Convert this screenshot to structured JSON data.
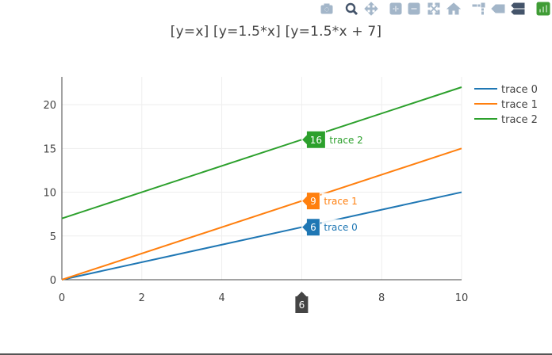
{
  "title": "[y=x]  [y=1.5*x]  [y=1.5*x + 7]",
  "modebar": {
    "icons": [
      "camera-icon",
      "zoom-icon",
      "pan-icon",
      "zoom-in-icon",
      "zoom-out-icon",
      "autoscale-icon",
      "home-icon",
      "spike-lines-icon",
      "hover-closest-icon",
      "hover-compare-icon",
      "plotly-logo-icon"
    ],
    "active": "zoom-icon",
    "color": "#a3b6c9",
    "active_color": "#44546a",
    "logo_color": "#3f9c35"
  },
  "chart_data": {
    "type": "line",
    "title": "[y=x]  [y=1.5*x]  [y=1.5*x + 7]",
    "xlabel": "",
    "ylabel": "",
    "x": [
      0,
      10
    ],
    "xlim": [
      0,
      10
    ],
    "ylim": [
      0,
      22
    ],
    "xticks": [
      "0",
      "2",
      "4",
      "6",
      "8",
      "10"
    ],
    "xtick_values": [
      0,
      2,
      4,
      6,
      8,
      10
    ],
    "yticks": [
      "0",
      "5",
      "10",
      "15",
      "20"
    ],
    "ytick_values": [
      0,
      5,
      10,
      15,
      20
    ],
    "grid": true,
    "legend_position": "top-right",
    "series": [
      {
        "name": "trace 0",
        "values": [
          0,
          10
        ],
        "color": "#1f77b4"
      },
      {
        "name": "trace 1",
        "values": [
          0,
          15
        ],
        "color": "#ff7f0e"
      },
      {
        "name": "trace 2",
        "values": [
          7,
          22
        ],
        "color": "#2ca02c"
      }
    ],
    "hover": {
      "x": 6,
      "x_label": "6",
      "x_label_color": "#444444",
      "labels": [
        {
          "series": "trace 0",
          "value_label": "6",
          "name": "trace 0",
          "y": 6
        },
        {
          "series": "trace 1",
          "value_label": "9",
          "name": "trace 1",
          "y": 9
        },
        {
          "series": "trace 2",
          "value_label": "16",
          "name": "trace 2",
          "y": 16
        }
      ]
    }
  }
}
